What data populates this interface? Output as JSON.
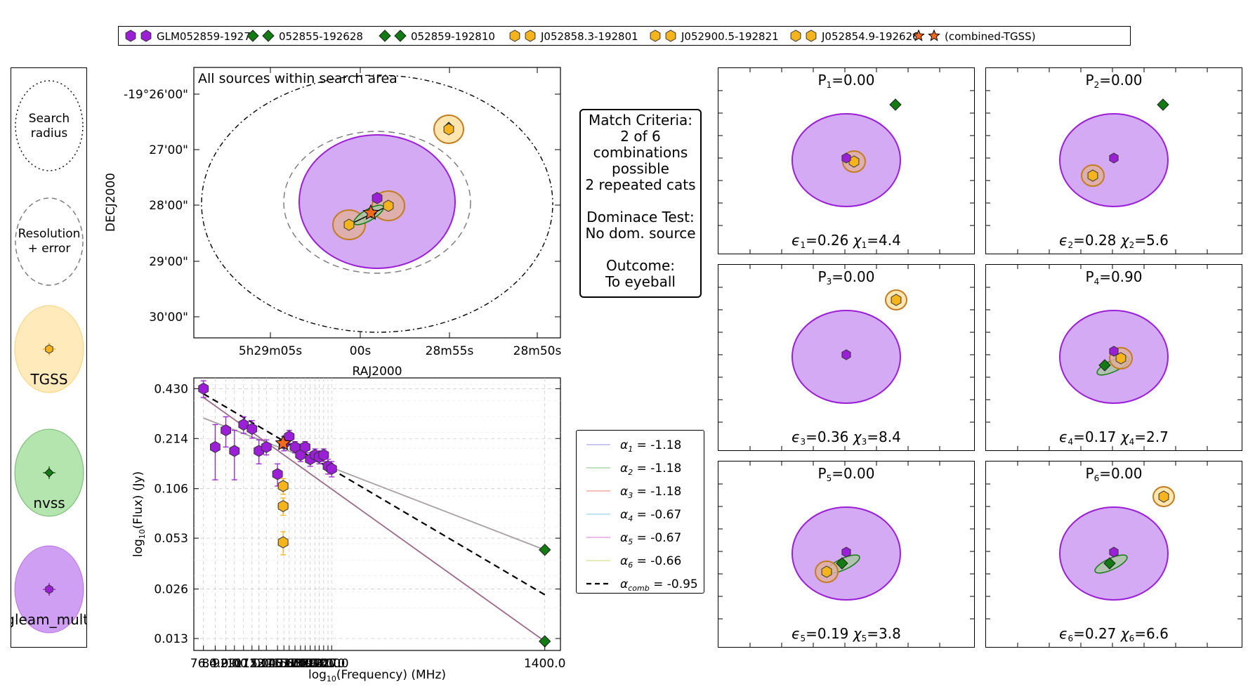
{
  "colors": {
    "gleam": "#9b1fd6",
    "gleam_fill": "#c58ef0",
    "nvss": "#137b13",
    "nvss_fill": "#a8e0a0",
    "tgss": "#f6b41c",
    "tgss_fill": "#ffe6b0",
    "combined": "#f26a1b"
  },
  "legend": {
    "items": [
      {
        "label": "GLM052859-1927",
        "marker": "hexagon",
        "color": "#9b1fd6"
      },
      {
        "label": "052855-192628",
        "marker": "diamond",
        "color": "#137b13"
      },
      {
        "label": "052859-192810",
        "marker": "diamond",
        "color": "#137b13"
      },
      {
        "label": "J052858.3-192801",
        "marker": "hexagon",
        "color": "#f6b41c"
      },
      {
        "label": "J052900.5-192821",
        "marker": "hexagon",
        "color": "#f6b41c"
      },
      {
        "label": "J052854.9-192626",
        "marker": "hexagon",
        "color": "#f6b41c"
      },
      {
        "label": "(combined-TGSS)",
        "marker": "star",
        "color": "#f26a1b"
      }
    ]
  },
  "key_panel": {
    "search_label_1": "Search",
    "search_label_2": "radius",
    "res_label_1": "Resolution",
    "res_label_2": "+ error",
    "catalogs": [
      {
        "name": "TGSS",
        "color": "#f6b41c",
        "fill": "#ffe6b0",
        "marker": "hexagon"
      },
      {
        "name": "nvss",
        "color": "#137b13",
        "fill": "#a8e0a0",
        "marker": "diamond"
      },
      {
        "name": "gleam_multi",
        "color": "#9b1fd6",
        "fill": "#c58ef0",
        "marker": "hexagon"
      }
    ]
  },
  "sky_plot": {
    "title": "All sources within search area",
    "xlabel": "RAJ2000",
    "ylabel": "DECJ2000",
    "xticks": [
      "5h29m05s",
      "00s",
      "28m55s",
      "28m50s"
    ],
    "yticks": [
      "-19°26'00\"",
      "27'00\"",
      "28'00\"",
      "29'00\"",
      "30'00\""
    ]
  },
  "match_box": {
    "lines": [
      "Match Criteria:",
      "2 of 6",
      "combinations",
      "possible",
      "2 repeated cats",
      "",
      "Dominace Test:",
      "No dom. source",
      "",
      "Outcome:",
      "To eyeball"
    ]
  },
  "sed_legend": {
    "items": [
      {
        "sym": "α",
        "sub": "1",
        "text": " = -1.18",
        "color": "#b5b5f0"
      },
      {
        "sym": "α",
        "sub": "2",
        "text": " = -1.18",
        "color": "#a9dba9"
      },
      {
        "sym": "α",
        "sub": "3",
        "text": " = -1.18",
        "color": "#f0a9a9"
      },
      {
        "sym": "α",
        "sub": "4",
        "text": " = -0.67",
        "color": "#a9dff0"
      },
      {
        "sym": "α",
        "sub": "5",
        "text": " = -0.67",
        "color": "#e3a9e3"
      },
      {
        "sym": "α",
        "sub": "6",
        "text": " = -0.66",
        "color": "#e6e2a0"
      },
      {
        "sym": "α",
        "sub": "comb",
        "text": " = -0.95",
        "color": "#000000",
        "dashed": true
      }
    ]
  },
  "chart_data": {
    "type": "scatter",
    "title": "",
    "xlabel": "log10(Frequency) (MHz)",
    "ylabel": "log10(Flux) (Jy)",
    "xlabel_parts": {
      "pre": "log",
      "sub": "10",
      "post": "(Frequency) (MHz)"
    },
    "ylabel_parts": {
      "pre": "log",
      "sub": "10",
      "post": "(Flux) (Jy)"
    },
    "x_log": true,
    "y_log": true,
    "ytick_labels": [
      "0.430",
      "0.214",
      "0.106",
      "0.053",
      "0.026",
      "0.013"
    ],
    "ytick_values": [
      0.43,
      0.214,
      0.106,
      0.053,
      0.026,
      0.013
    ],
    "xtick_labels": [
      "76.0",
      "84.0",
      "92.0",
      "99.0",
      "107.0",
      "115.0",
      "122.0",
      "130.0",
      "143.0",
      "151.0",
      "158.0",
      "166.0",
      "174.0",
      "181.0",
      "189.0",
      "197.0",
      "204.0",
      "212.0",
      "220.0",
      "227.0",
      "1400.0"
    ],
    "xtick_values": [
      76,
      84,
      92,
      99,
      107,
      115,
      122,
      130,
      143,
      151,
      158,
      166,
      174,
      181,
      189,
      197,
      204,
      212,
      220,
      227,
      1400
    ],
    "ylim": [
      0.011,
      0.5
    ],
    "xlim": [
      70,
      1600
    ],
    "series": [
      {
        "name": "GLM052859-1927",
        "marker": "hexagon",
        "color": "#9b1fd6",
        "points": [
          [
            76,
            0.43,
            0.05
          ],
          [
            84,
            0.19,
            0.07
          ],
          [
            92,
            0.24,
            0.05
          ],
          [
            99,
            0.18,
            0.06
          ],
          [
            107,
            0.26,
            0.03
          ],
          [
            115,
            0.245,
            0.03
          ],
          [
            122,
            0.18,
            0.03
          ],
          [
            130,
            0.19,
            0.02
          ],
          [
            143,
            0.13,
            0.02
          ],
          [
            151,
            0.2,
            0.02
          ],
          [
            158,
            0.22,
            0.02
          ],
          [
            166,
            0.19,
            0.015
          ],
          [
            174,
            0.17,
            0.015
          ],
          [
            181,
            0.19,
            0.015
          ],
          [
            189,
            0.16,
            0.015
          ],
          [
            197,
            0.17,
            0.015
          ],
          [
            204,
            0.165,
            0.015
          ],
          [
            212,
            0.17,
            0.015
          ],
          [
            220,
            0.145,
            0.015
          ],
          [
            227,
            0.14,
            0.015
          ]
        ]
      },
      {
        "name": "052855-192628",
        "marker": "diamond",
        "color": "#137b13",
        "points": [
          [
            1400,
            0.045,
            0
          ]
        ]
      },
      {
        "name": "052859-192810",
        "marker": "diamond",
        "color": "#137b13",
        "points": [
          [
            1400,
            0.0125,
            0
          ]
        ]
      },
      {
        "name": "J052858.3-192801",
        "marker": "hexagon",
        "color": "#f6b41c",
        "points": [
          [
            150,
            0.11,
            0.012
          ]
        ]
      },
      {
        "name": "J052900.5-192821",
        "marker": "hexagon",
        "color": "#f6b41c",
        "points": [
          [
            150,
            0.083,
            0.01
          ]
        ]
      },
      {
        "name": "J052854.9-192626",
        "marker": "hexagon",
        "color": "#f6b41c",
        "points": [
          [
            150,
            0.05,
            0.008
          ]
        ]
      },
      {
        "name": "(combined-TGSS)",
        "marker": "star",
        "color": "#f26a1b",
        "points": [
          [
            150,
            0.2,
            0
          ]
        ]
      }
    ],
    "fits": [
      {
        "name": "grey fit",
        "color": "#a8a0a0",
        "alpha": -0.67,
        "x0": 76,
        "y0": 0.285,
        "x1": 1400,
        "y1": 0.045
      },
      {
        "name": "steep fit",
        "color": "#9c6a8a",
        "alpha": -1.18,
        "x0": 76,
        "y0": 0.38,
        "x1": 1400,
        "y1": 0.0125
      },
      {
        "name": "combined",
        "color": "#000000",
        "dashed": true,
        "alpha": -0.95,
        "x0": 76,
        "y0": 0.4,
        "x1": 1400,
        "y1": 0.024
      }
    ]
  },
  "combo_panels": [
    {
      "p_label": "P",
      "p_sub": "1",
      "p_val": "=0.00",
      "e_sub": "1",
      "e_val": "=0.26",
      "c_sub": "1",
      "c_val": "=4.4"
    },
    {
      "p_label": "P",
      "p_sub": "2",
      "p_val": "=0.00",
      "e_sub": "2",
      "e_val": "=0.28",
      "c_sub": "2",
      "c_val": "=5.6"
    },
    {
      "p_label": "P",
      "p_sub": "3",
      "p_val": "=0.00",
      "e_sub": "3",
      "e_val": "=0.36",
      "c_sub": "3",
      "c_val": "=8.4"
    },
    {
      "p_label": "P",
      "p_sub": "4",
      "p_val": "=0.90",
      "e_sub": "4",
      "e_val": "=0.17",
      "c_sub": "4",
      "c_val": "=2.7"
    },
    {
      "p_label": "P",
      "p_sub": "5",
      "p_val": "=0.00",
      "e_sub": "5",
      "e_val": "=0.19",
      "c_sub": "5",
      "c_val": "=3.8"
    },
    {
      "p_label": "P",
      "p_sub": "6",
      "p_val": "=0.00",
      "e_sub": "6",
      "e_val": "=0.27",
      "c_sub": "6",
      "c_val": "=6.6"
    }
  ],
  "eps_sym": "ϵ",
  "chi_sym": "χ"
}
